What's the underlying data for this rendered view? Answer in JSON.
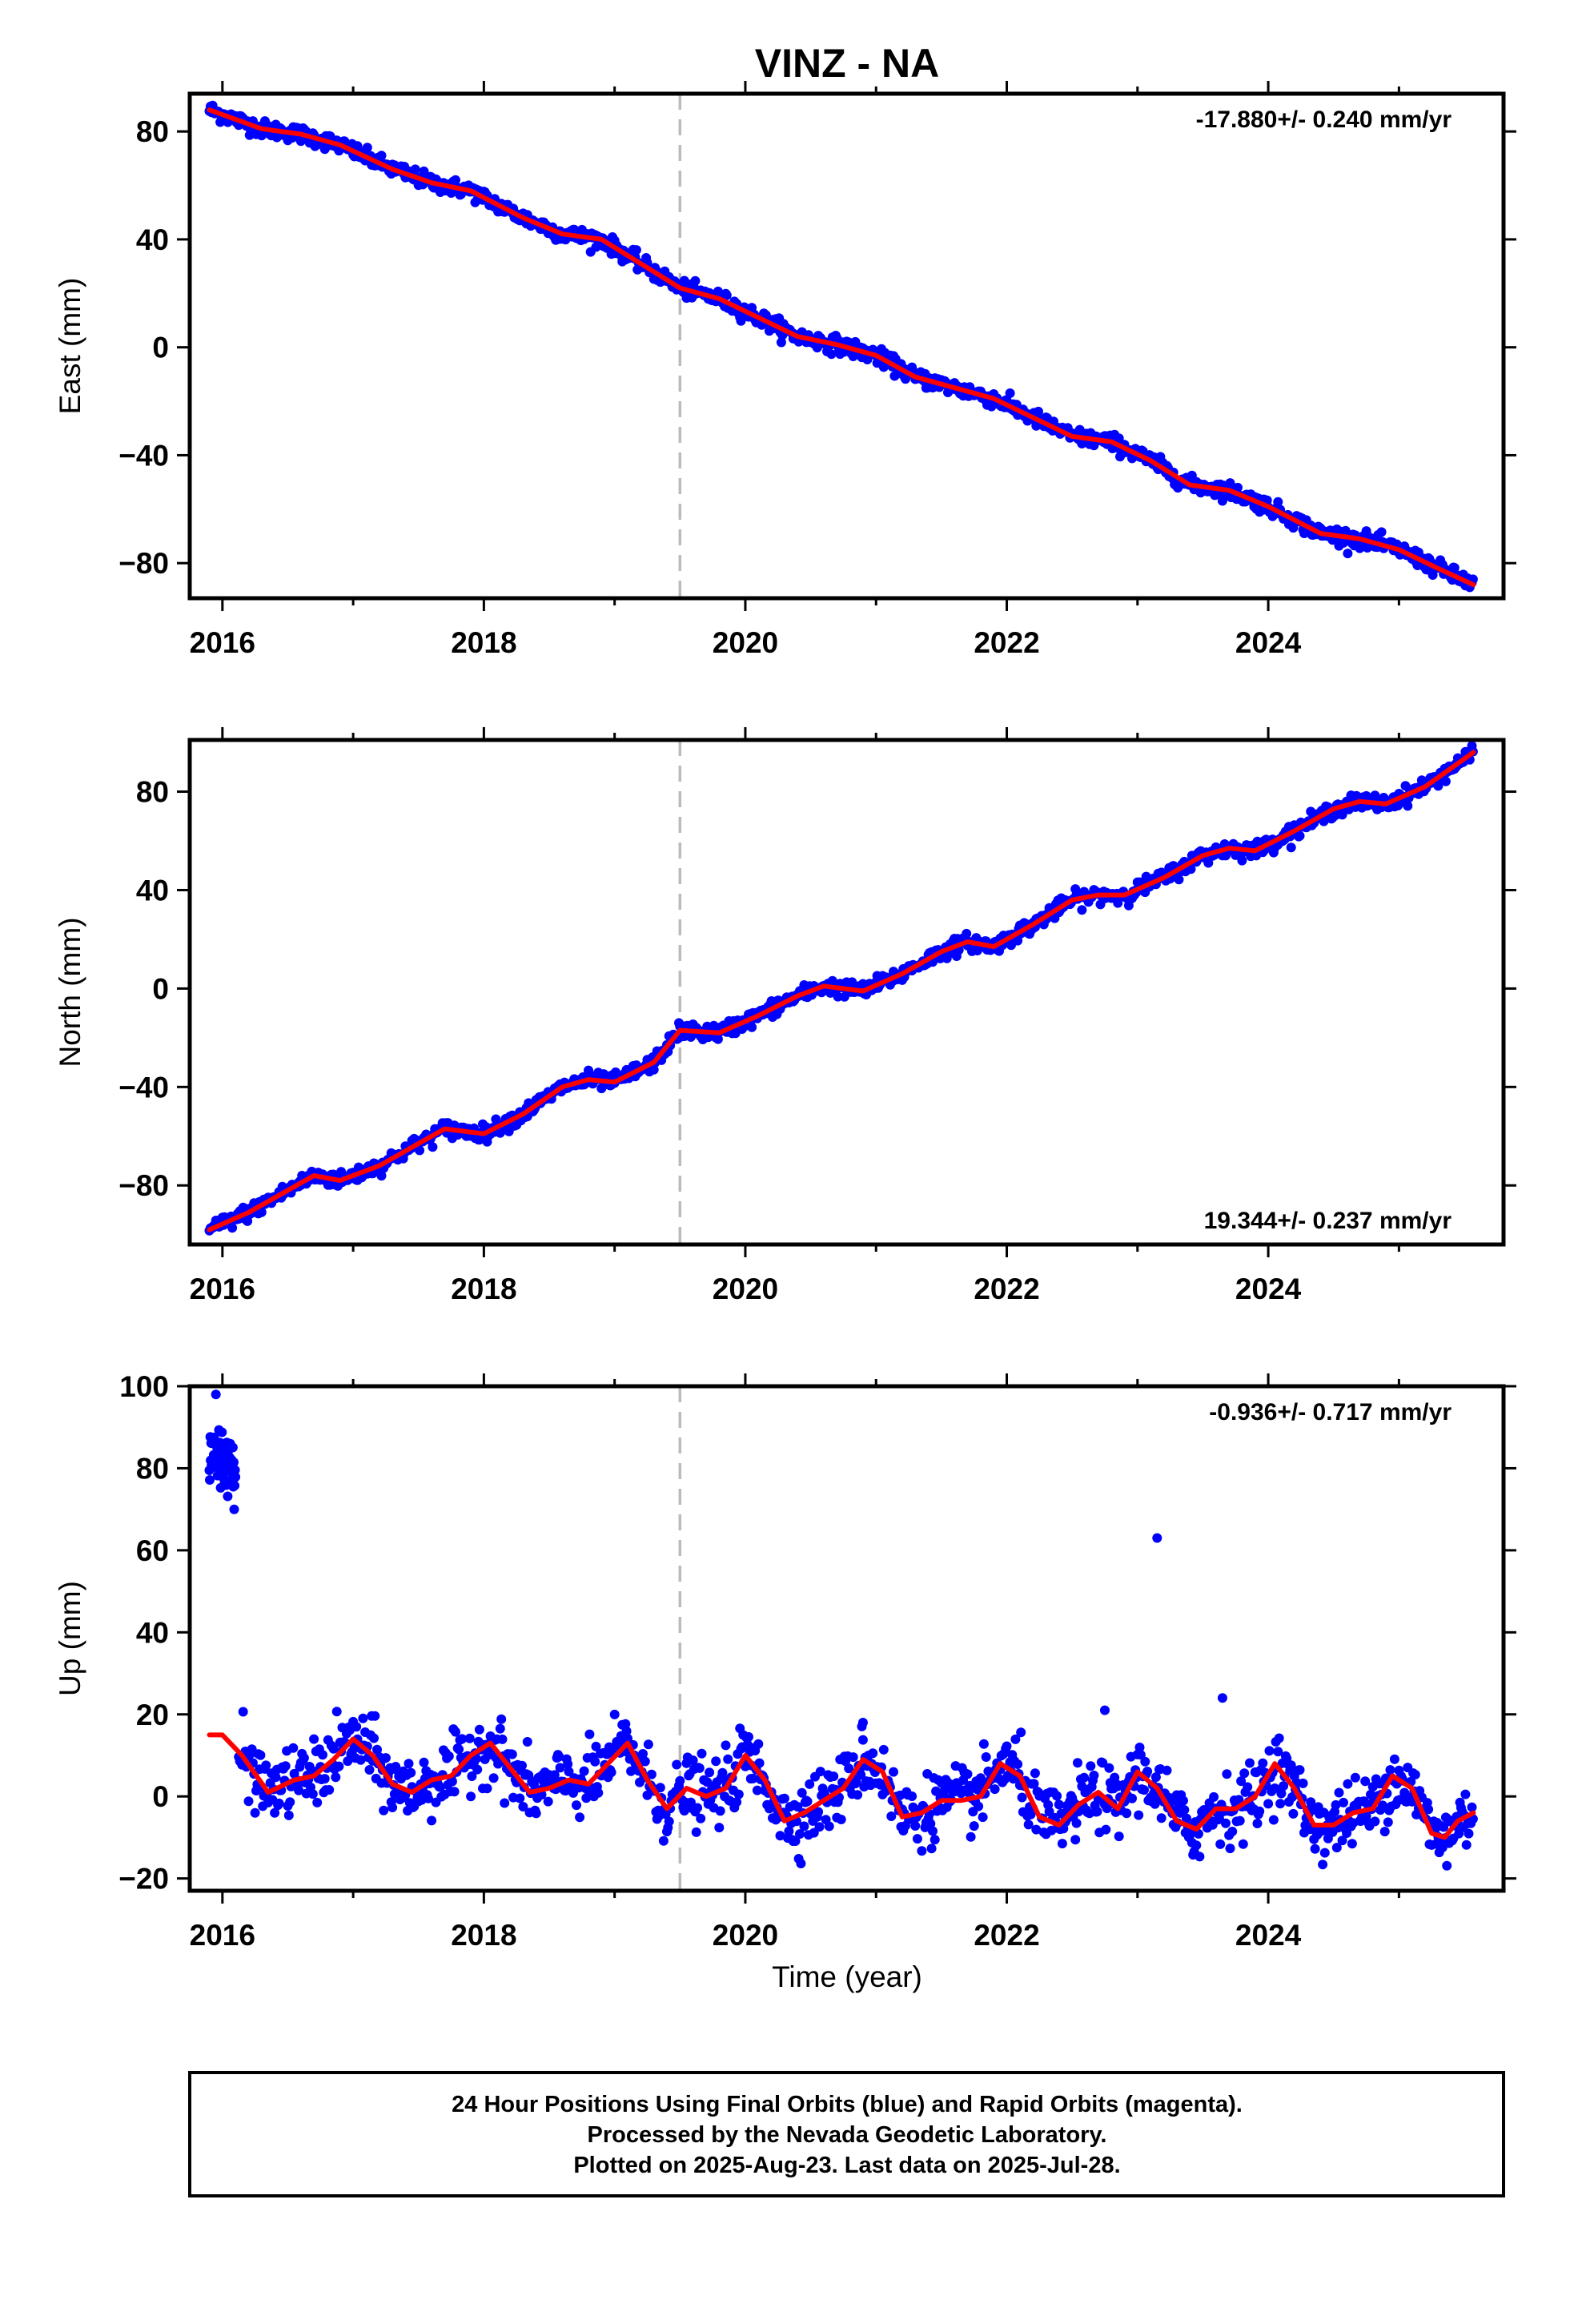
{
  "title": "VINZ - NA",
  "colors": {
    "final_orbits": "#0000ff",
    "model": "#ff0000",
    "event_line": "#bbbbbb",
    "frame": "#000000"
  },
  "chart_data": [
    {
      "type": "scatter",
      "name": "east",
      "ylabel": "East (mm)",
      "rate_label": "-17.880+/- 0.240 mm/yr",
      "rate_position": "top-right",
      "xlim": [
        2015.75,
        2025.8
      ],
      "ylim": [
        -93,
        94
      ],
      "x_ticks": [
        2016,
        2018,
        2020,
        2022,
        2024
      ],
      "y_ticks": [
        80,
        40,
        0,
        -40,
        -80
      ],
      "y_tick_labels": [
        "80",
        "40",
        "0",
        "−40",
        "−80"
      ],
      "event_line_x": 2019.5,
      "trend": {
        "t0": 2015.9,
        "y0": 88,
        "slope": -17.88
      },
      "noise_mm": 1.5,
      "series": [
        {
          "values": [
            [
              2015.9,
              88
            ],
            [
              2016.3,
              81
            ],
            [
              2016.6,
              79
            ],
            [
              2016.9,
              75
            ],
            [
              2017.3,
              66
            ],
            [
              2017.6,
              61
            ],
            [
              2017.9,
              58
            ],
            [
              2018.3,
              48
            ],
            [
              2018.6,
              42
            ],
            [
              2018.9,
              40
            ],
            [
              2019.2,
              31
            ],
            [
              2019.5,
              22
            ],
            [
              2019.8,
              18
            ],
            [
              2020.1,
              11
            ],
            [
              2020.4,
              4
            ],
            [
              2020.7,
              1
            ],
            [
              2021.0,
              -3
            ],
            [
              2021.3,
              -11
            ],
            [
              2021.6,
              -15
            ],
            [
              2021.9,
              -19
            ],
            [
              2022.2,
              -26
            ],
            [
              2022.5,
              -33
            ],
            [
              2022.8,
              -35
            ],
            [
              2023.1,
              -42
            ],
            [
              2023.4,
              -51
            ],
            [
              2023.7,
              -53
            ],
            [
              2024.0,
              -59
            ],
            [
              2024.4,
              -69
            ],
            [
              2024.7,
              -71
            ],
            [
              2025.0,
              -75
            ],
            [
              2025.3,
              -82
            ],
            [
              2025.57,
              -88
            ]
          ]
        }
      ]
    },
    {
      "type": "scatter",
      "name": "north",
      "ylabel": "North (mm)",
      "rate_label": "19.344+/- 0.237 mm/yr",
      "rate_position": "bottom-right",
      "xlim": [
        2015.75,
        2025.8
      ],
      "ylim": [
        -104,
        101
      ],
      "x_ticks": [
        2016,
        2018,
        2020,
        2022,
        2024
      ],
      "y_ticks": [
        80,
        40,
        0,
        -40,
        -80
      ],
      "y_tick_labels": [
        "80",
        "40",
        "0",
        "−40",
        "−80"
      ],
      "event_line_x": 2019.5,
      "trend": {
        "t0": 2015.9,
        "y0": -98,
        "slope": 19.344
      },
      "noise_mm": 1.6,
      "series": [
        {
          "values": [
            [
              2015.9,
              -98
            ],
            [
              2016.2,
              -91
            ],
            [
              2016.5,
              -82
            ],
            [
              2016.7,
              -76
            ],
            [
              2016.9,
              -78
            ],
            [
              2017.2,
              -72
            ],
            [
              2017.5,
              -63
            ],
            [
              2017.7,
              -57
            ],
            [
              2018.0,
              -59
            ],
            [
              2018.3,
              -51
            ],
            [
              2018.6,
              -40
            ],
            [
              2018.8,
              -37
            ],
            [
              2019.0,
              -38
            ],
            [
              2019.3,
              -30
            ],
            [
              2019.5,
              -17
            ],
            [
              2019.8,
              -18
            ],
            [
              2020.1,
              -11
            ],
            [
              2020.4,
              -3
            ],
            [
              2020.6,
              1
            ],
            [
              2020.9,
              -1
            ],
            [
              2021.2,
              6
            ],
            [
              2021.5,
              15
            ],
            [
              2021.7,
              19
            ],
            [
              2021.9,
              17
            ],
            [
              2022.2,
              26
            ],
            [
              2022.5,
              36
            ],
            [
              2022.7,
              38
            ],
            [
              2022.9,
              38
            ],
            [
              2023.2,
              45
            ],
            [
              2023.5,
              54
            ],
            [
              2023.7,
              57
            ],
            [
              2023.9,
              56
            ],
            [
              2024.2,
              64
            ],
            [
              2024.5,
              73
            ],
            [
              2024.7,
              76
            ],
            [
              2024.9,
              75
            ],
            [
              2025.2,
              82
            ],
            [
              2025.57,
              96
            ]
          ]
        }
      ]
    },
    {
      "type": "scatter",
      "name": "up",
      "ylabel": "Up (mm)",
      "xlabel": "Time (year)",
      "rate_label": "-0.936+/- 0.717 mm/yr",
      "rate_position": "top-right",
      "xlim": [
        2015.75,
        2025.8
      ],
      "ylim": [
        -23,
        100
      ],
      "x_ticks": [
        2016,
        2018,
        2020,
        2022,
        2024
      ],
      "y_ticks": [
        100,
        80,
        60,
        40,
        20,
        0,
        -20
      ],
      "y_tick_labels": [
        "100",
        "80",
        "60",
        "40",
        "20",
        "0",
        "−20"
      ],
      "event_line_x": 2019.5,
      "noise_mm": 4,
      "early_cluster": {
        "x_range": [
          2015.9,
          2016.1
        ],
        "y_mean": 84,
        "spread": 4
      },
      "outliers": [
        [
          2015.95,
          98
        ],
        [
          2023.15,
          63
        ],
        [
          2023.65,
          24
        ],
        [
          2022.75,
          21
        ],
        [
          2020.9,
          18
        ]
      ],
      "series": [
        {
          "values": [
            [
              2015.9,
              15
            ],
            [
              2016.0,
              15
            ],
            [
              2016.15,
              10
            ],
            [
              2016.35,
              1
            ],
            [
              2016.55,
              4
            ],
            [
              2016.7,
              5
            ],
            [
              2016.85,
              9
            ],
            [
              2017.0,
              14
            ],
            [
              2017.15,
              10
            ],
            [
              2017.3,
              3
            ],
            [
              2017.45,
              1
            ],
            [
              2017.6,
              4
            ],
            [
              2017.75,
              5
            ],
            [
              2017.9,
              10
            ],
            [
              2018.05,
              13
            ],
            [
              2018.2,
              7
            ],
            [
              2018.35,
              1
            ],
            [
              2018.5,
              2
            ],
            [
              2018.65,
              4
            ],
            [
              2018.8,
              3
            ],
            [
              2018.95,
              8
            ],
            [
              2019.1,
              13
            ],
            [
              2019.25,
              4
            ],
            [
              2019.4,
              -3
            ],
            [
              2019.55,
              2
            ],
            [
              2019.7,
              0
            ],
            [
              2019.85,
              2
            ],
            [
              2020.0,
              10
            ],
            [
              2020.15,
              4
            ],
            [
              2020.3,
              -6
            ],
            [
              2020.45,
              -4
            ],
            [
              2020.6,
              -1
            ],
            [
              2020.75,
              2
            ],
            [
              2020.9,
              9
            ],
            [
              2021.05,
              6
            ],
            [
              2021.2,
              -5
            ],
            [
              2021.35,
              -4
            ],
            [
              2021.5,
              -1
            ],
            [
              2021.65,
              -1
            ],
            [
              2021.8,
              0
            ],
            [
              2021.95,
              8
            ],
            [
              2022.1,
              5
            ],
            [
              2022.25,
              -5
            ],
            [
              2022.4,
              -7
            ],
            [
              2022.55,
              -2
            ],
            [
              2022.7,
              1
            ],
            [
              2022.85,
              -3
            ],
            [
              2023.0,
              6
            ],
            [
              2023.15,
              2
            ],
            [
              2023.3,
              -6
            ],
            [
              2023.45,
              -8
            ],
            [
              2023.6,
              -3
            ],
            [
              2023.75,
              -3
            ],
            [
              2023.9,
              0
            ],
            [
              2024.05,
              8
            ],
            [
              2024.2,
              2
            ],
            [
              2024.35,
              -7
            ],
            [
              2024.5,
              -7
            ],
            [
              2024.65,
              -4
            ],
            [
              2024.8,
              -3
            ],
            [
              2024.95,
              5
            ],
            [
              2025.1,
              2
            ],
            [
              2025.25,
              -9
            ],
            [
              2025.35,
              -10
            ],
            [
              2025.45,
              -6
            ],
            [
              2025.57,
              -4
            ]
          ]
        }
      ]
    }
  ],
  "footer": {
    "line1": "24 Hour Positions Using Final Orbits (blue) and Rapid Orbits (magenta).",
    "line2": "Processed by the Nevada Geodetic Laboratory.",
    "line3": "Plotted on 2025-Aug-23. Last data on 2025-Jul-28."
  }
}
